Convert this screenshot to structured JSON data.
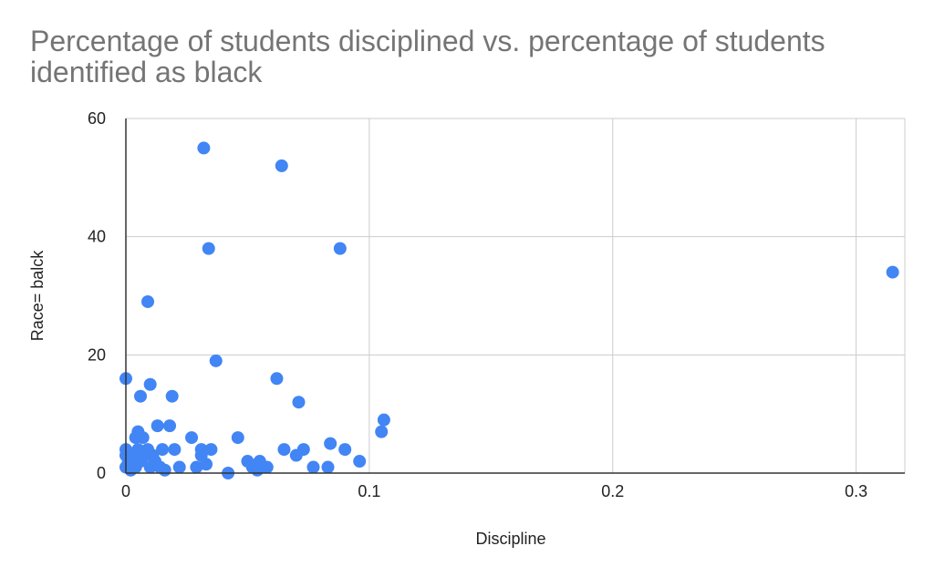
{
  "chart_data": {
    "type": "scatter",
    "title": "Percentage of students disciplined vs. percentage of students identified as black",
    "xlabel": "Discipline",
    "ylabel": "Race= balck",
    "xlim": [
      0,
      0.32
    ],
    "ylim": [
      0,
      60
    ],
    "x_ticks": [
      "0",
      "0.1",
      "0.2",
      "0.3"
    ],
    "y_ticks": [
      "0",
      "20",
      "40",
      "60"
    ],
    "x_tick_values": [
      0,
      0.1,
      0.2,
      0.3
    ],
    "y_tick_values": [
      0,
      20,
      40,
      60
    ],
    "grid": true,
    "legend": "none",
    "colors": {
      "points": "#4285f4",
      "grid": "#cccccc",
      "axis": "#333333",
      "title": "#757575"
    },
    "points": [
      [
        0.032,
        55
      ],
      [
        0.064,
        52
      ],
      [
        0.034,
        38
      ],
      [
        0.088,
        38
      ],
      [
        0.315,
        34
      ],
      [
        0.009,
        29
      ],
      [
        0.037,
        19
      ],
      [
        0.0,
        16
      ],
      [
        0.062,
        16
      ],
      [
        0.01,
        15
      ],
      [
        0.006,
        13
      ],
      [
        0.019,
        13
      ],
      [
        0.071,
        12
      ],
      [
        0.106,
        9
      ],
      [
        0.013,
        8
      ],
      [
        0.018,
        8
      ],
      [
        0.105,
        7
      ],
      [
        0.005,
        7
      ],
      [
        0.004,
        6
      ],
      [
        0.007,
        6
      ],
      [
        0.027,
        6
      ],
      [
        0.046,
        6
      ],
      [
        0.084,
        5
      ],
      [
        0.0,
        4
      ],
      [
        0.005,
        4
      ],
      [
        0.009,
        4
      ],
      [
        0.011,
        3
      ],
      [
        0.015,
        4
      ],
      [
        0.02,
        4
      ],
      [
        0.031,
        4
      ],
      [
        0.035,
        4
      ],
      [
        0.065,
        4
      ],
      [
        0.073,
        4
      ],
      [
        0.09,
        4
      ],
      [
        0.0,
        3
      ],
      [
        0.003,
        3
      ],
      [
        0.008,
        3
      ],
      [
        0.031,
        3
      ],
      [
        0.07,
        3
      ],
      [
        0.001,
        2
      ],
      [
        0.006,
        2
      ],
      [
        0.012,
        2
      ],
      [
        0.05,
        2
      ],
      [
        0.055,
        2
      ],
      [
        0.096,
        2
      ],
      [
        0.0,
        1
      ],
      [
        0.004,
        1
      ],
      [
        0.01,
        1
      ],
      [
        0.014,
        1
      ],
      [
        0.022,
        1
      ],
      [
        0.029,
        1
      ],
      [
        0.052,
        1
      ],
      [
        0.058,
        1
      ],
      [
        0.077,
        1
      ],
      [
        0.083,
        1
      ],
      [
        0.033,
        1.5
      ],
      [
        0.042,
        0
      ],
      [
        0.054,
        0.5
      ],
      [
        0.002,
        0.5
      ],
      [
        0.016,
        0.5
      ]
    ]
  }
}
